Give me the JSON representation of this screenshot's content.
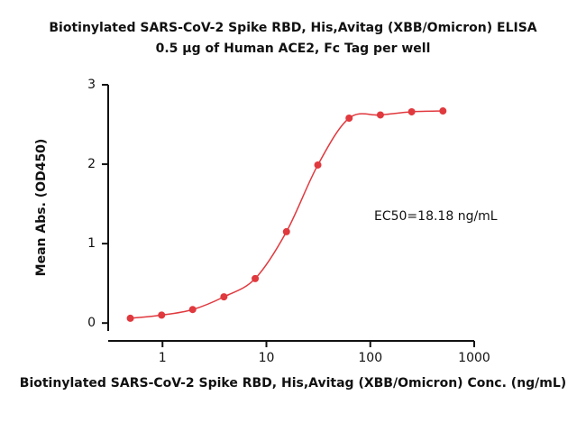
{
  "chart_data": {
    "type": "scatter",
    "title": "Biotinylated SARS-CoV-2 Spike RBD, His,Avitag (XBB/Omicron) ELISA",
    "subtitle": "0.5 μg of Human ACE2, Fc Tag per well",
    "x_label": "Biotinylated SARS-CoV-2 Spike RBD, His,Avitag (XBB/Omicron) Conc. (ng/mL)",
    "y_label": "Mean Abs. (OD450)",
    "annotation": "EC50=18.18 ng/mL",
    "x": [
      0.49,
      0.98,
      1.95,
      3.9,
      7.8,
      15.6,
      31.25,
      62.5,
      125,
      250,
      500
    ],
    "values": [
      0.06,
      0.1,
      0.17,
      0.33,
      0.56,
      1.15,
      1.99,
      2.58,
      2.62,
      2.66,
      2.67
    ],
    "color": "#e0393e",
    "xscale": "log",
    "xlim": [
      0.3,
      1000
    ],
    "xticks": [
      1,
      10,
      100,
      1000
    ],
    "ylim": [
      -0.1,
      3
    ],
    "yticks": [
      0,
      1,
      2,
      3
    ],
    "grid": false
  }
}
